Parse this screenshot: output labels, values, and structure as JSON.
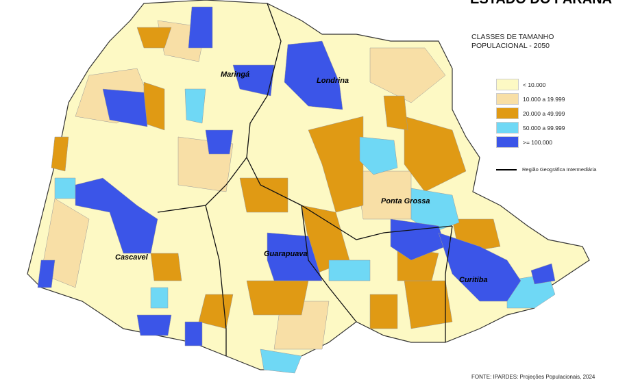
{
  "title": "ESTADO DO PARANÁ",
  "subtitle": "CLASSES DE TAMANHO POPULACIONAL - 2050",
  "legend": [
    {
      "label": "< 10.000",
      "color": "#fdf9c4"
    },
    {
      "label": "10.000 a 19.999",
      "color": "#f8dfa6"
    },
    {
      "label": "20.000 a 49.999",
      "color": "#e09a14"
    },
    {
      "label": "50.000 a 99.999",
      "color": "#6fd8f5"
    },
    {
      "label": ">= 100.000",
      "color": "#3b55e8"
    }
  ],
  "region_legend": "Região Geográfica Intermediária",
  "cities": [
    "Maringá",
    "Londrina",
    "Ponta Grossa",
    "Cascavel",
    "Guarapuava",
    "Curitiba"
  ],
  "source": "FONTE: IPARDES: Projeções Populacionais, 2024"
}
